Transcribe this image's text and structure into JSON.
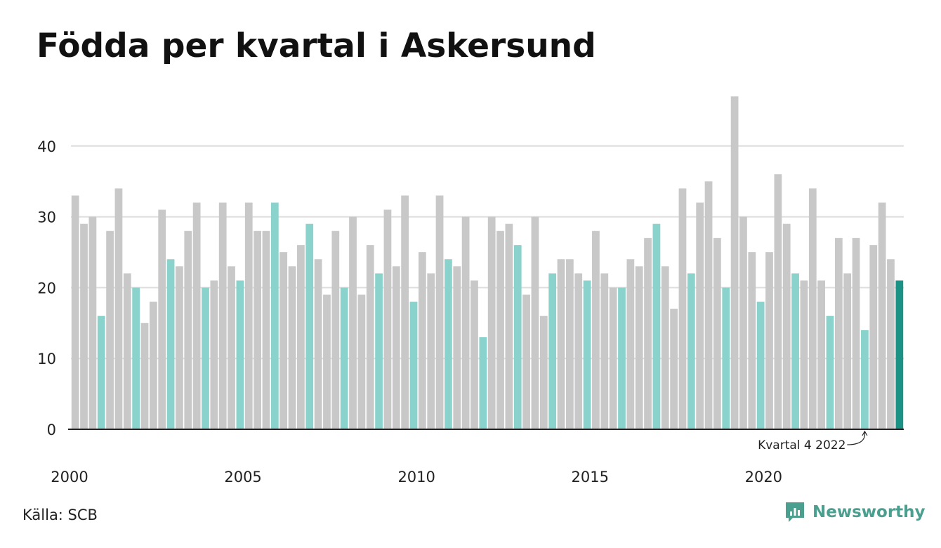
{
  "title": "Födda per kvartal i Askersund",
  "source": "Källa: SCB",
  "brand": "Newsworthy",
  "colors": {
    "bar_default": "#c8c8c8",
    "bar_q4": "#8ad3cc",
    "bar_latest": "#1a9384",
    "grid": "#dddddd",
    "axis": "#222222",
    "brand": "#4a9f8f"
  },
  "chart_data": {
    "type": "bar",
    "start_year": 2000,
    "quarters_per_year": 4,
    "values": [
      33,
      29,
      30,
      16,
      28,
      34,
      22,
      20,
      15,
      18,
      31,
      24,
      23,
      28,
      32,
      20,
      21,
      32,
      23,
      21,
      32,
      28,
      28,
      32,
      25,
      23,
      26,
      29,
      24,
      19,
      28,
      20,
      30,
      19,
      26,
      22,
      31,
      23,
      33,
      18,
      25,
      22,
      33,
      24,
      23,
      30,
      21,
      13,
      30,
      28,
      29,
      26,
      19,
      30,
      16,
      22,
      24,
      24,
      22,
      21,
      28,
      22,
      20,
      20,
      24,
      23,
      27,
      29,
      23,
      17,
      34,
      22,
      32,
      35,
      27,
      20,
      47,
      30,
      25,
      18,
      25,
      36,
      29,
      22,
      21,
      34,
      21,
      16,
      27,
      22,
      27,
      14,
      26,
      32,
      24,
      21
    ],
    "ylim": [
      0,
      48
    ],
    "yticks": [
      0,
      10,
      20,
      30,
      40
    ],
    "xtick_labels": [
      "2000",
      "2005",
      "2010",
      "2015",
      "2020"
    ],
    "grid": true,
    "highlight": "Q4 bars teal; latest bar dark teal",
    "annotation": "Kvartal 4 2022"
  }
}
